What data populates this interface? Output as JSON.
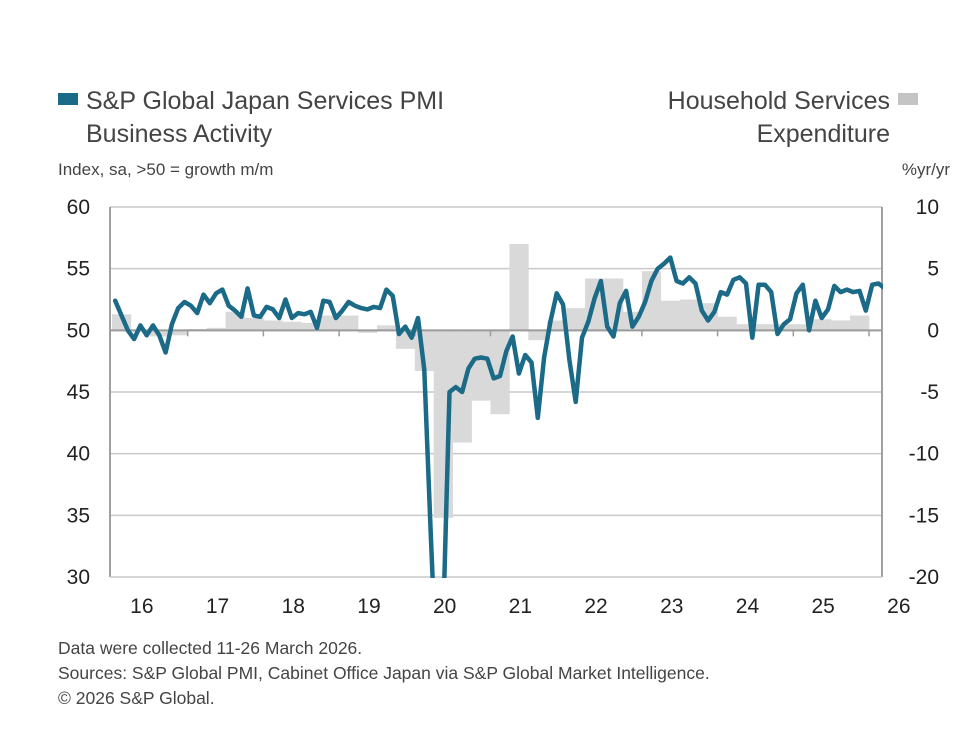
{
  "colors": {
    "pmi_line": "#1b6a87",
    "expenditure_bar": "#d9d9d9",
    "grid": "#c9c9c9",
    "axis": "#a0a0a0"
  },
  "chart_data": {
    "type": "bar+line",
    "legend": {
      "left": [
        "S&P Global Japan Services PMI",
        "Business Activity"
      ],
      "right": [
        "Household Services",
        "Expenditure"
      ]
    },
    "ylabel_left": "Index, sa, >50 = growth m/m",
    "ylabel_right": "%yr/yr",
    "ylim_left": [
      30,
      60
    ],
    "ylim_right": [
      -20,
      10
    ],
    "yticks_left": [
      "60",
      "55",
      "50",
      "45",
      "40",
      "35",
      "30"
    ],
    "yticks_right": [
      "10",
      "5",
      "0",
      "-5",
      "-10",
      "-15",
      "-20"
    ],
    "xticks": [
      "16",
      "17",
      "18",
      "19",
      "20",
      "21",
      "22",
      "23",
      "24",
      "25",
      "26"
    ],
    "grid": true,
    "series": [
      {
        "name": "S&P Global Japan Services PMI Business Activity",
        "type": "line",
        "axis": "left",
        "frequency": "monthly",
        "start": "2016-01",
        "values": [
          52.4,
          51.2,
          50.0,
          49.3,
          50.4,
          49.6,
          50.4,
          49.6,
          48.2,
          50.5,
          51.8,
          52.3,
          52.0,
          51.4,
          52.9,
          52.2,
          53.0,
          53.3,
          52.0,
          51.6,
          51.1,
          53.4,
          51.2,
          51.1,
          51.9,
          51.7,
          51.0,
          52.5,
          51.0,
          51.4,
          51.3,
          51.5,
          50.2,
          52.4,
          52.3,
          51.0,
          51.6,
          52.3,
          52.0,
          51.8,
          51.7,
          51.9,
          51.8,
          53.3,
          52.8,
          49.7,
          50.3,
          49.4,
          51.0,
          46.8,
          33.8,
          21.5,
          26.5,
          45.0,
          45.4,
          45.0,
          46.9,
          47.7,
          47.8,
          47.7,
          46.1,
          46.3,
          48.3,
          49.5,
          46.5,
          48.0,
          47.4,
          42.9,
          47.8,
          50.7,
          53.0,
          52.1,
          47.6,
          44.2,
          49.4,
          50.7,
          52.6,
          54.0,
          50.3,
          49.5,
          52.2,
          53.2,
          50.3,
          51.1,
          52.3,
          54.0,
          55.0,
          55.4,
          55.9,
          54.0,
          53.8,
          54.3,
          53.8,
          51.6,
          50.8,
          51.5,
          53.1,
          52.9,
          54.1,
          54.3,
          53.8,
          49.4,
          53.7,
          53.7,
          53.1,
          49.7,
          50.5,
          50.9,
          53.0,
          53.7,
          50.0,
          52.4,
          51.0,
          51.7,
          53.6,
          53.1,
          53.3,
          53.1,
          53.2,
          51.6,
          53.7,
          53.8,
          53.4
        ]
      },
      {
        "name": "Household Services Expenditure",
        "type": "bar",
        "axis": "right",
        "frequency": "quarterly",
        "start": "2016-Q1",
        "values": [
          1.3,
          0.0,
          -0.5,
          -0.4,
          0.1,
          0.2,
          1.5,
          1.0,
          0.8,
          0.7,
          0.6,
          1.2,
          1.2,
          -0.2,
          0.4,
          -1.5,
          -3.3,
          -15.2,
          -9.1,
          -5.7,
          -6.8,
          7.0,
          -0.8,
          0.8,
          1.8,
          4.2,
          4.2,
          1.5,
          4.8,
          2.4,
          2.5,
          2.2,
          1.1,
          0.5,
          0.5,
          0.5,
          0.5,
          0.9,
          0.8,
          1.2
        ]
      }
    ]
  },
  "footer": {
    "line1": "Data were collected 11-26 March 2026.",
    "line2": "Sources: S&P Global PMI, Cabinet Office Japan via S&P Global Market Intelligence.",
    "line3": "© 2026 S&P Global."
  }
}
